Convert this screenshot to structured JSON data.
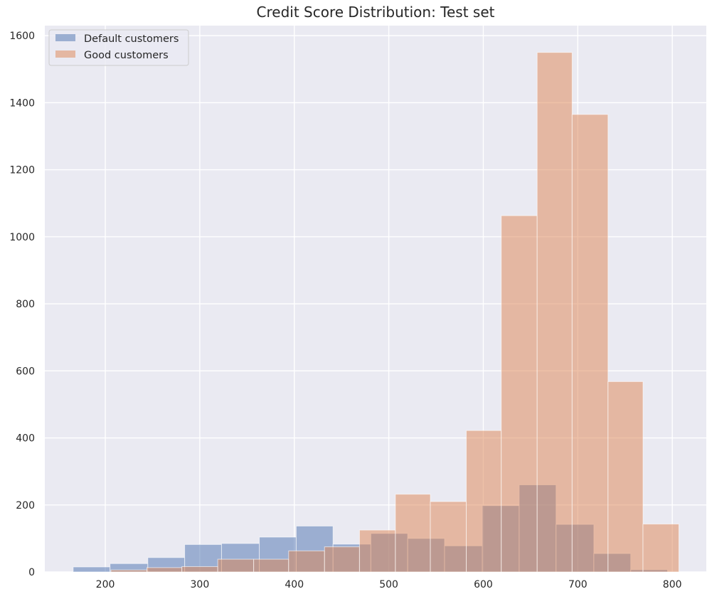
{
  "chart_data": {
    "type": "bar",
    "title": "Credit Score Distribution: Test set",
    "xlabel": "",
    "ylabel": "",
    "xlim": [
      136,
      836
    ],
    "ylim": [
      0,
      1630
    ],
    "x_ticks": [
      200,
      300,
      400,
      500,
      600,
      700,
      800
    ],
    "y_ticks": [
      0,
      200,
      400,
      600,
      800,
      1000,
      1200,
      1400,
      1600
    ],
    "grid": true,
    "legend_position": "top-left",
    "series": [
      {
        "name": "Default customers",
        "color": "#4c72b0",
        "opacity": 0.5,
        "bins": [
          {
            "x0": 166,
            "x1": 205,
            "value": 15
          },
          {
            "x0": 205,
            "x1": 245,
            "value": 25
          },
          {
            "x0": 245,
            "x1": 284,
            "value": 43
          },
          {
            "x0": 284,
            "x1": 323,
            "value": 82
          },
          {
            "x0": 323,
            "x1": 363,
            "value": 85
          },
          {
            "x0": 363,
            "x1": 402,
            "value": 104
          },
          {
            "x0": 402,
            "x1": 441,
            "value": 137
          },
          {
            "x0": 441,
            "x1": 481,
            "value": 83
          },
          {
            "x0": 481,
            "x1": 520,
            "value": 115
          },
          {
            "x0": 520,
            "x1": 559,
            "value": 100
          },
          {
            "x0": 559,
            "x1": 599,
            "value": 78
          },
          {
            "x0": 599,
            "x1": 638,
            "value": 198
          },
          {
            "x0": 638,
            "x1": 677,
            "value": 260
          },
          {
            "x0": 677,
            "x1": 717,
            "value": 142
          },
          {
            "x0": 717,
            "x1": 756,
            "value": 55
          },
          {
            "x0": 756,
            "x1": 795,
            "value": 7
          }
        ]
      },
      {
        "name": "Good customers",
        "color": "#dd8452",
        "opacity": 0.5,
        "bins": [
          {
            "x0": 206,
            "x1": 244,
            "value": 6
          },
          {
            "x0": 244,
            "x1": 281,
            "value": 13
          },
          {
            "x0": 281,
            "x1": 319,
            "value": 16
          },
          {
            "x0": 319,
            "x1": 357,
            "value": 38
          },
          {
            "x0": 357,
            "x1": 394,
            "value": 38
          },
          {
            "x0": 394,
            "x1": 432,
            "value": 63
          },
          {
            "x0": 432,
            "x1": 469,
            "value": 75
          },
          {
            "x0": 469,
            "x1": 507,
            "value": 125
          },
          {
            "x0": 507,
            "x1": 544,
            "value": 232
          },
          {
            "x0": 544,
            "x1": 582,
            "value": 210
          },
          {
            "x0": 582,
            "x1": 619,
            "value": 422
          },
          {
            "x0": 619,
            "x1": 657,
            "value": 1063
          },
          {
            "x0": 657,
            "x1": 694,
            "value": 1550
          },
          {
            "x0": 694,
            "x1": 732,
            "value": 1365
          },
          {
            "x0": 732,
            "x1": 769,
            "value": 568
          },
          {
            "x0": 769,
            "x1": 807,
            "value": 143
          }
        ]
      }
    ]
  }
}
